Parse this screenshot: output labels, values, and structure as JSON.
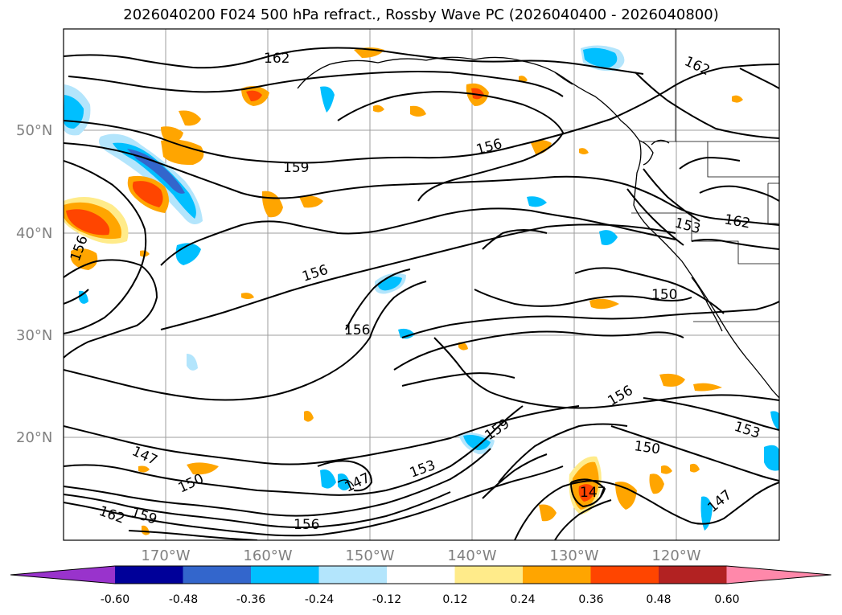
{
  "title": "2026040200 F024 500 hPa refract., Rossby Wave PC (2026040400 - 2026040800)",
  "lat_labels": [
    "50°N",
    "40°N",
    "30°N",
    "20°N"
  ],
  "lon_labels": [
    "170°W",
    "160°W",
    "150°W",
    "140°W",
    "130°W",
    "120°W"
  ],
  "contour_labels": [
    "162",
    "162",
    "162",
    "162",
    "159",
    "159",
    "159",
    "156",
    "156",
    "156",
    "156",
    "156",
    "156",
    "153",
    "153",
    "153",
    "150",
    "150",
    "150",
    "147",
    "147",
    "147",
    "147"
  ],
  "colorbar": {
    "ticks": [
      "-0.60",
      "-0.48",
      "-0.36",
      "-0.24",
      "-0.12",
      "0.12",
      "0.24",
      "0.36",
      "0.48",
      "0.60"
    ],
    "colors": [
      "#9933cc",
      "#000099",
      "#3366cc",
      "#00bfff",
      "#b3e5fc",
      "#ffffff",
      "#ffeb8a",
      "#ffa500",
      "#ff4500",
      "#b22222",
      "#ff88aa"
    ]
  }
}
